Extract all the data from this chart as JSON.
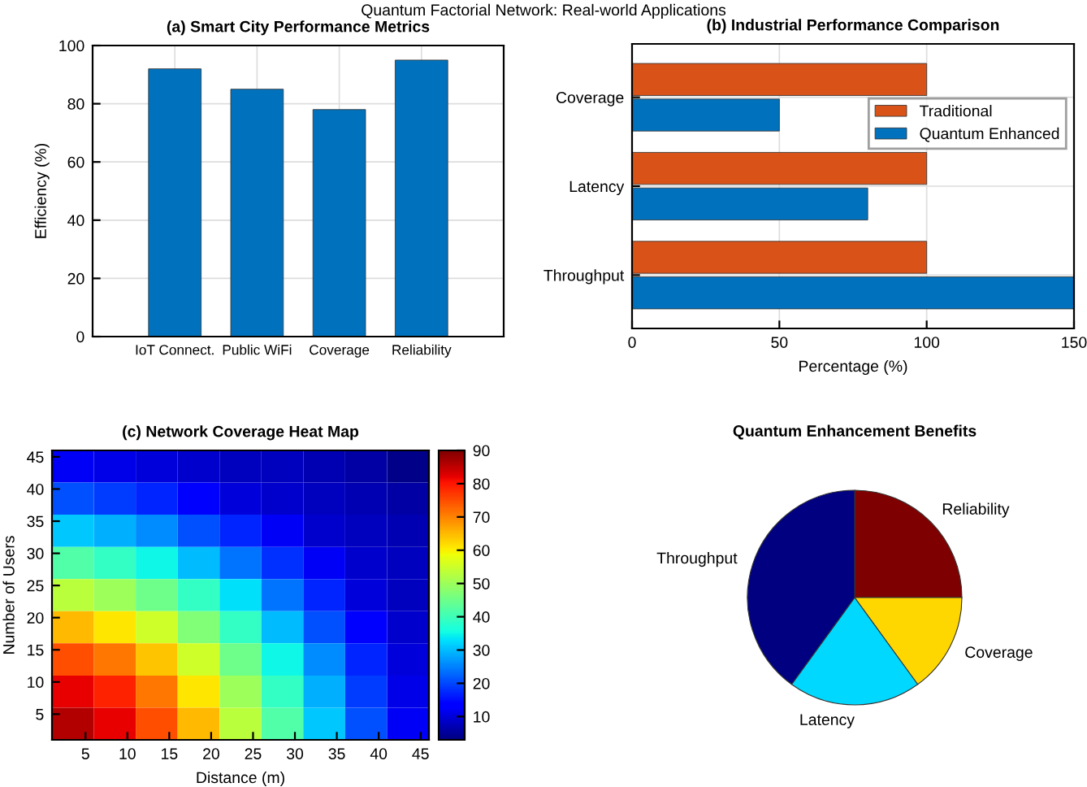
{
  "chart_data": [
    {
      "type": "bar",
      "title": "(a) Smart City Performance Metrics",
      "annotations": [
        "Quantum Factorial Network: Real-world Applications"
      ],
      "ylabel": "Efficiency (%)",
      "categories": [
        "IoT Connect.",
        "Public WiFi",
        "Coverage",
        "Reliability"
      ],
      "values": [
        92,
        85,
        78,
        95
      ],
      "color": "#0072bd",
      "ylim": [
        0,
        100
      ],
      "yticks": [
        0,
        20,
        40,
        60,
        80,
        100
      ],
      "grid": true
    },
    {
      "type": "bar",
      "orientation": "horizontal",
      "title": "(b) Industrial Performance Comparison",
      "xlabel": "Percentage (%)",
      "categories": [
        "Coverage",
        "Latency",
        "Throughput"
      ],
      "series": [
        {
          "name": "Traditional",
          "color": "#d95319",
          "values": [
            100,
            100,
            100
          ]
        },
        {
          "name": "Quantum Enhanced",
          "color": "#0072bd",
          "values": [
            50,
            80,
            150
          ]
        }
      ],
      "xlim": [
        0,
        150
      ],
      "xticks": [
        0,
        50,
        100,
        150
      ],
      "grid": true,
      "legend": "right"
    },
    {
      "type": "heatmap",
      "title": "(c) Network Coverage Heat Map",
      "xlabel": "Distance (m)",
      "ylabel": "Number of Users",
      "x": [
        3.5,
        8.5,
        13.5,
        18.5,
        23.5,
        28.5,
        33.5,
        38.5,
        43.5
      ],
      "y": [
        43.5,
        38.5,
        33.5,
        28.5,
        23.5,
        18.5,
        13.5,
        8.5,
        3.5
      ],
      "xlim": [
        1,
        46
      ],
      "ylim": [
        1,
        46
      ],
      "xticks": [
        5,
        10,
        15,
        20,
        25,
        30,
        35,
        40,
        45
      ],
      "yticks": [
        5,
        10,
        15,
        20,
        25,
        30,
        35,
        40,
        45
      ],
      "cells": [
        [
          12,
          11,
          10,
          9,
          8,
          8,
          7,
          6,
          4
        ],
        [
          21,
          19,
          17,
          14,
          10,
          9,
          8,
          7,
          6
        ],
        [
          31,
          29,
          26,
          21,
          17,
          12,
          9,
          8,
          7
        ],
        [
          42,
          39,
          35,
          30,
          24,
          18,
          12,
          9,
          8
        ],
        [
          53,
          50,
          45,
          39,
          33,
          24,
          17,
          10,
          8
        ],
        [
          65,
          61,
          55,
          47,
          39,
          30,
          21,
          14,
          9
        ],
        [
          75,
          71,
          64,
          55,
          45,
          35,
          26,
          17,
          10
        ],
        [
          82,
          79,
          71,
          61,
          50,
          39,
          29,
          19,
          11
        ],
        [
          86,
          82,
          75,
          65,
          53,
          42,
          31,
          21,
          12
        ]
      ],
      "clim": [
        3,
        90
      ],
      "cticks": [
        10,
        20,
        30,
        40,
        50,
        60,
        70,
        80,
        90
      ]
    },
    {
      "type": "pie",
      "title": "Quantum Enhancement Benefits",
      "categories": [
        "Reliability",
        "Coverage",
        "Latency",
        "Throughput"
      ],
      "values": [
        25,
        15,
        20,
        40
      ],
      "colors": [
        "#7f0000",
        "#ffd700",
        "#00d8ff",
        "#000080"
      ]
    }
  ]
}
